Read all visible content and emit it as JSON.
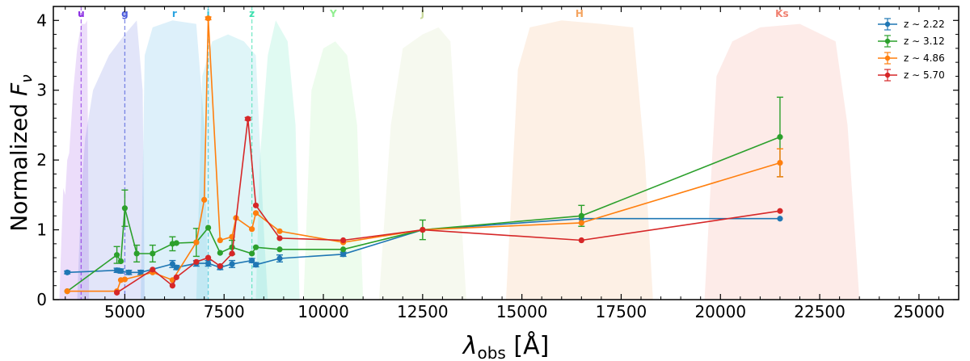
{
  "chart_data": {
    "type": "line",
    "title": "",
    "xlabel": "λ_obs [Å]",
    "ylabel": "Normalized F_ν",
    "xlim": [
      3200,
      26000
    ],
    "ylim": [
      0,
      4.2
    ],
    "xticks": [
      5000,
      7500,
      10000,
      12500,
      15000,
      17500,
      20000,
      22500,
      25000
    ],
    "yticks": [
      0,
      1,
      2,
      3,
      4
    ],
    "legend_position": "top-right",
    "grid": false,
    "filter_bands": [
      {
        "label": "u",
        "color": "#8a2be2",
        "line_x": 3900,
        "profile": [
          [
            3350,
            0
          ],
          [
            3400,
            0.8
          ],
          [
            3450,
            1.6
          ],
          [
            3500,
            1.5
          ],
          [
            3550,
            2.0
          ],
          [
            3600,
            2.1
          ],
          [
            3700,
            3.0
          ],
          [
            3800,
            3.6
          ],
          [
            3900,
            3.95
          ],
          [
            4000,
            3.95
          ],
          [
            4050,
            4.0
          ],
          [
            4100,
            0
          ]
        ]
      },
      {
        "label": "g",
        "color": "#4b5bdc",
        "line_x": 5000,
        "profile": [
          [
            3800,
            0
          ],
          [
            3900,
            1.5
          ],
          [
            4000,
            2.3
          ],
          [
            4200,
            3.0
          ],
          [
            4600,
            3.5
          ],
          [
            5000,
            3.8
          ],
          [
            5300,
            4.0
          ],
          [
            5450,
            3.0
          ],
          [
            5500,
            0
          ]
        ]
      },
      {
        "label": "r",
        "color": "#29a3e0",
        "line_x": null,
        "profile": [
          [
            5400,
            0
          ],
          [
            5500,
            3.5
          ],
          [
            5700,
            3.9
          ],
          [
            6200,
            4.0
          ],
          [
            6800,
            3.95
          ],
          [
            7000,
            2.5
          ],
          [
            7100,
            0
          ]
        ]
      },
      {
        "label": "i",
        "color": "#3ac2d6",
        "line_x": 7100,
        "profile": [
          [
            6800,
            0
          ],
          [
            6950,
            3.2
          ],
          [
            7200,
            3.7
          ],
          [
            7600,
            3.8
          ],
          [
            8000,
            3.7
          ],
          [
            8300,
            3.5
          ],
          [
            8500,
            1.0
          ],
          [
            8600,
            0
          ]
        ]
      },
      {
        "label": "z",
        "color": "#40e0b0",
        "line_x": 8200,
        "profile": [
          [
            8300,
            0
          ],
          [
            8400,
            2.0
          ],
          [
            8600,
            3.5
          ],
          [
            8800,
            4.0
          ],
          [
            9100,
            3.7
          ],
          [
            9300,
            2.5
          ],
          [
            9400,
            0
          ]
        ]
      },
      {
        "label": "Y",
        "color": "#90ee90",
        "line_x": null,
        "profile": [
          [
            9500,
            0
          ],
          [
            9700,
            3.0
          ],
          [
            10000,
            3.6
          ],
          [
            10300,
            3.7
          ],
          [
            10600,
            3.5
          ],
          [
            10850,
            2.5
          ],
          [
            11000,
            0
          ]
        ]
      },
      {
        "label": "J",
        "color": "#c8d89a",
        "line_x": null,
        "profile": [
          [
            11400,
            0
          ],
          [
            11700,
            2.5
          ],
          [
            12000,
            3.6
          ],
          [
            12500,
            3.8
          ],
          [
            12900,
            3.9
          ],
          [
            13200,
            3.7
          ],
          [
            13600,
            0
          ]
        ]
      },
      {
        "label": "H",
        "color": "#f4a460",
        "line_x": null,
        "profile": [
          [
            14600,
            0
          ],
          [
            14900,
            3.3
          ],
          [
            15200,
            3.9
          ],
          [
            16000,
            4.0
          ],
          [
            17000,
            3.95
          ],
          [
            17800,
            3.9
          ],
          [
            18100,
            2.0
          ],
          [
            18300,
            0
          ]
        ]
      },
      {
        "label": "Ks",
        "color": "#f08070",
        "line_x": null,
        "profile": [
          [
            19600,
            0
          ],
          [
            19900,
            3.2
          ],
          [
            20300,
            3.7
          ],
          [
            21000,
            3.9
          ],
          [
            22000,
            3.95
          ],
          [
            22900,
            3.7
          ],
          [
            23200,
            2.5
          ],
          [
            23500,
            0
          ]
        ]
      }
    ],
    "series": [
      {
        "name": "z ∼ 2.22",
        "color": "#1f77b4",
        "x": [
          3550,
          4800,
          4900,
          5100,
          5400,
          6200,
          6300,
          6800,
          7100,
          7400,
          7700,
          8200,
          8300,
          8900,
          10500,
          12500,
          16500,
          21500
        ],
        "y": [
          0.39,
          0.42,
          0.41,
          0.39,
          0.39,
          0.51,
          0.46,
          0.52,
          0.52,
          0.46,
          0.51,
          0.56,
          0.5,
          0.59,
          0.65,
          1.0,
          1.16,
          1.16
        ],
        "err": [
          0.02,
          0.03,
          0.03,
          0.03,
          0.03,
          0.05,
          0.03,
          0.04,
          0.04,
          0.03,
          0.05,
          0.03,
          0.03,
          0.05,
          0.03,
          0.0,
          0.0,
          0.0
        ]
      },
      {
        "name": "z ∼ 3.12",
        "color": "#2ca02c",
        "x": [
          3550,
          4800,
          4900,
          5000,
          5300,
          5700,
          6200,
          6300,
          6800,
          7100,
          7400,
          7700,
          8200,
          8300,
          8900,
          10500,
          12500,
          16500,
          21500
        ],
        "y": [
          0.12,
          0.64,
          0.55,
          1.31,
          0.66,
          0.66,
          0.8,
          0.81,
          0.82,
          1.03,
          0.67,
          0.75,
          0.66,
          0.75,
          0.72,
          0.72,
          1.0,
          1.2,
          2.33
        ],
        "err": [
          0.0,
          0.12,
          0.0,
          0.26,
          0.12,
          0.12,
          0.1,
          0.0,
          0.2,
          0.0,
          0.0,
          0.1,
          0.0,
          0.0,
          0.0,
          0.0,
          0.14,
          0.15,
          0.57
        ]
      },
      {
        "name": "z ∼ 4.86",
        "color": "#ff7f0e",
        "x": [
          3550,
          4800,
          4900,
          5000,
          5700,
          6200,
          6800,
          7000,
          7100,
          7400,
          7700,
          7800,
          8200,
          8300,
          8900,
          10500,
          12500,
          16500,
          21500
        ],
        "y": [
          0.12,
          0.12,
          0.28,
          0.29,
          0.39,
          0.28,
          0.82,
          1.43,
          4.03,
          0.85,
          0.9,
          1.17,
          1.01,
          1.24,
          0.98,
          0.82,
          1.0,
          1.1,
          1.96
        ],
        "err": [
          0.0,
          0.0,
          0.0,
          0.0,
          0.0,
          0.0,
          0.0,
          0.0,
          0.02,
          0.0,
          0.0,
          0.0,
          0.0,
          0.0,
          0.0,
          0.0,
          0.0,
          0.0,
          0.2
        ]
      },
      {
        "name": "z ∼ 5.70",
        "color": "#d62728",
        "x": [
          4800,
          5700,
          6200,
          6300,
          6800,
          7100,
          7400,
          7700,
          8100,
          8300,
          8900,
          10500,
          12500,
          16500,
          21500
        ],
        "y": [
          0.1,
          0.43,
          0.2,
          0.32,
          0.54,
          0.6,
          0.48,
          0.66,
          2.59,
          1.35,
          0.88,
          0.85,
          1.0,
          0.85,
          1.27
        ],
        "err": [
          0.0,
          0.0,
          0.0,
          0.0,
          0.0,
          0.0,
          0.0,
          0.0,
          0.02,
          0.0,
          0.0,
          0.0,
          0.0,
          0.0,
          0.0
        ]
      }
    ]
  }
}
